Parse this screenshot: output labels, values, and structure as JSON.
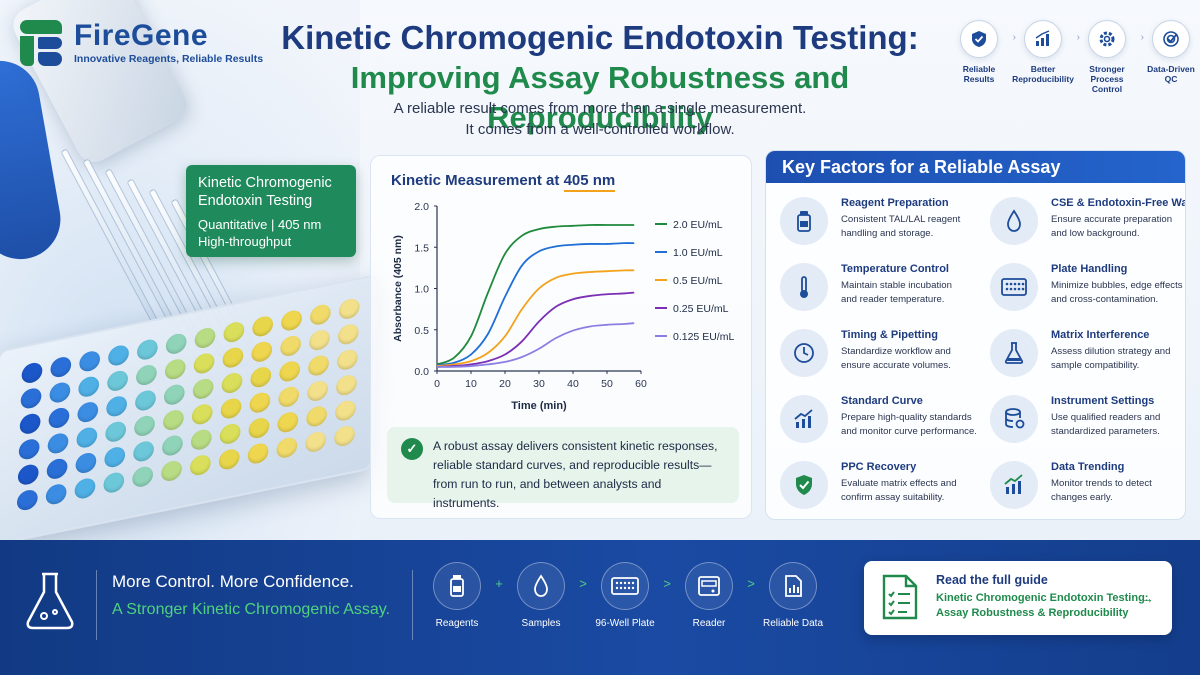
{
  "brand": {
    "name": "FireGene",
    "tagline": "Innovative Reagents, Reliable Results"
  },
  "header": {
    "title_line1": "Kinetic Chromogenic Endotoxin Testing:",
    "title_line2": "Improving Assay Robustness and Reproducibility",
    "subtitle_line1": "A reliable result comes from more than a single measurement.",
    "subtitle_line2": "It comes from a well-controlled workflow."
  },
  "badges": [
    {
      "icon": "shield-check-icon",
      "label_1": "Reliable",
      "label_2": "Results"
    },
    {
      "icon": "bar-chart-icon",
      "label_1": "Better",
      "label_2": "Reproducibility"
    },
    {
      "icon": "gear-icon",
      "label_1": "Stronger",
      "label_2": "Process Control"
    },
    {
      "icon": "target-check-icon",
      "label_1": "Data-Driven",
      "label_2": "QC"
    }
  ],
  "method_card": {
    "title_line1": "Kinetic Chromogenic",
    "title_line2": "Endotoxin Testing",
    "line1": "Quantitative  |  405 nm",
    "line2": "High-throughput"
  },
  "chart": {
    "title_prefix": "Kinetic Measurement at ",
    "title_highlight": "405 nm",
    "callout_line1": "A robust assay delivers consistent kinetic responses,",
    "callout_line2": "reliable standard curves, and reproducible results—",
    "callout_line3": "from run to run, and between analysts and instruments."
  },
  "chart_data": {
    "type": "line",
    "xlabel": "Time (min)",
    "ylabel": "Absorbance (405 nm)",
    "xlim": [
      0,
      60
    ],
    "ylim": [
      0,
      2.0
    ],
    "x_ticks": [
      "0",
      "10",
      "20",
      "30",
      "40",
      "50",
      "60"
    ],
    "y_ticks": [
      "0.0",
      "0.5",
      "1.0",
      "1.5",
      "2.0"
    ],
    "legend_position": "right",
    "x": [
      0,
      5,
      10,
      15,
      20,
      25,
      30,
      35,
      40,
      45,
      50,
      55,
      58
    ],
    "series": [
      {
        "name": "2.0 EU/mL",
        "color": "#1f8a3c",
        "values": [
          0.08,
          0.16,
          0.42,
          0.95,
          1.42,
          1.64,
          1.72,
          1.75,
          1.76,
          1.77,
          1.77,
          1.77,
          1.77
        ]
      },
      {
        "name": "1.0 EU/mL",
        "color": "#1f6fd6",
        "values": [
          0.07,
          0.1,
          0.2,
          0.45,
          0.9,
          1.28,
          1.45,
          1.51,
          1.53,
          1.54,
          1.54,
          1.55,
          1.55
        ]
      },
      {
        "name": "0.5 EU/mL",
        "color": "#f3a21b",
        "values": [
          0.06,
          0.08,
          0.12,
          0.22,
          0.42,
          0.75,
          1.0,
          1.13,
          1.18,
          1.2,
          1.21,
          1.22,
          1.22
        ]
      },
      {
        "name": "0.25 EU/mL",
        "color": "#7a2fb5",
        "values": [
          0.05,
          0.06,
          0.08,
          0.12,
          0.2,
          0.36,
          0.6,
          0.78,
          0.87,
          0.91,
          0.93,
          0.94,
          0.95
        ]
      },
      {
        "name": "0.125 EU/mL",
        "color": "#8a7fe0",
        "values": [
          0.05,
          0.05,
          0.06,
          0.08,
          0.11,
          0.17,
          0.27,
          0.4,
          0.49,
          0.54,
          0.56,
          0.57,
          0.58
        ]
      }
    ]
  },
  "factors": {
    "title": "Key Factors for a Reliable Assay",
    "items": [
      {
        "icon": "reagent-vial-icon",
        "title": "Reagent Preparation",
        "desc_1": "Consistent TAL/LAL reagent",
        "desc_2": "handling and storage."
      },
      {
        "icon": "water-drop-icon",
        "title": "CSE & Endotoxin-Free Water",
        "desc_1": "Ensure accurate preparation",
        "desc_2": "and low background."
      },
      {
        "icon": "thermometer-icon",
        "title": "Temperature Control",
        "desc_1": "Maintain stable incubation",
        "desc_2": "and reader temperature."
      },
      {
        "icon": "well-plate-icon",
        "title": "Plate Handling",
        "desc_1": "Minimize bubbles, edge effects",
        "desc_2": "and cross-contamination."
      },
      {
        "icon": "clock-icon",
        "title": "Timing & Pipetting",
        "desc_1": "Standardize workflow and",
        "desc_2": "ensure accurate volumes."
      },
      {
        "icon": "flask-icon",
        "title": "Matrix Interference",
        "desc_1": "Assess dilution strategy and",
        "desc_2": "sample compatibility."
      },
      {
        "icon": "trend-up-icon",
        "title": "Standard Curve",
        "desc_1": "Prepare high-quality standards",
        "desc_2": "and monitor curve performance."
      },
      {
        "icon": "database-gear-icon",
        "title": "Instrument Settings",
        "desc_1": "Use qualified readers and",
        "desc_2": "standardized parameters."
      },
      {
        "icon": "shield-check-icon",
        "title": "PPC Recovery",
        "desc_1": "Evaluate matrix effects and",
        "desc_2": "confirm assay suitability."
      },
      {
        "icon": "bar-trend-icon",
        "title": "Data Trending",
        "desc_1": "Monitor trends to detect",
        "desc_2": "changes early."
      }
    ]
  },
  "footer": {
    "headline": "More Control. More Confidence.",
    "subheadline": "A Stronger Kinetic Chromogenic Assay.",
    "flow": [
      {
        "icon": "reagent-vial-icon",
        "label": "Reagents"
      },
      {
        "icon": "water-drop-icon",
        "label": "Samples"
      },
      {
        "icon": "well-plate-icon",
        "label": "96-Well Plate"
      },
      {
        "icon": "plate-reader-icon",
        "label": "Reader"
      },
      {
        "icon": "document-chart-icon",
        "label": "Reliable Data"
      }
    ],
    "flow_seps": [
      "+",
      ">",
      ">",
      ">"
    ],
    "guide_title": "Read the full guide",
    "guide_sub_1": "Kinetic Chromogenic Endotoxin Testing:",
    "guide_sub_2": "Assay Robustness & Reproducibility",
    "guide_arrow": "→"
  }
}
